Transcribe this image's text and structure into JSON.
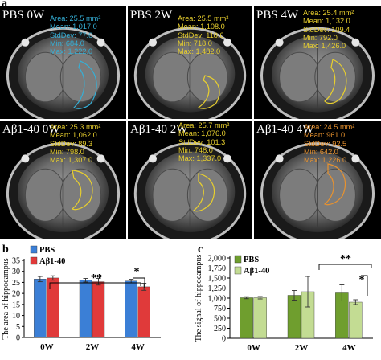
{
  "panel_letters": {
    "a": "a",
    "b": "b",
    "c": "c"
  },
  "images": [
    {
      "title": "PBS 0W",
      "stats_color": "#34b0d8",
      "roi_color": "#34b0d8",
      "stats": [
        "Area: 25.5 mm²",
        "Mean: 1,017.0",
        "StdDev: 77.6",
        "Min: 684.0",
        "Max: 1,222.0"
      ]
    },
    {
      "title": "PBS 2W",
      "stats_color": "#e8cf2e",
      "roi_color": "#e8cf2e",
      "stats": [
        "Area: 25.5 mm²",
        "Mean: 1,108.0",
        "StdDev: 118.6",
        "Min: 718.0",
        "Max: 1,482.0"
      ]
    },
    {
      "title": "PBS 4W",
      "stats_color": "#e8cf2e",
      "roi_color": "#e8cf2e",
      "stats": [
        "Area: 25.4 mm²",
        "Mean: 1,132.0",
        "StdDev: 109.4",
        "Min: 792.0",
        "Max: 1,426.0"
      ]
    },
    {
      "title": "Aβ1-40 0W",
      "stats_color": "#e8cf2e",
      "roi_color": "#e8cf2e",
      "stats": [
        "Area: 25.3 mm²",
        "Mean: 1,062.0",
        "StdDev: 89.3",
        "Min: 798.0",
        "Max: 1,307.0"
      ]
    },
    {
      "title": "Aβ1-40 2W",
      "stats_color": "#e8cf2e",
      "roi_color": "#e8cf2e",
      "stats": [
        "Area: 25.7 mm²",
        "Mean: 1,076.0",
        "StdDev: 101.3",
        "Min: 748.0",
        "Max: 1,337.0"
      ]
    },
    {
      "title": "Aβ1-40 4W",
      "stats_color": "#e8922e",
      "roi_color": "#e8922e",
      "stats": [
        "Area: 24.5 mm²",
        "Mean: 961.0",
        "StdDev: 92.5",
        "Min: 642.0",
        "Max: 1,226.0"
      ]
    }
  ],
  "chart_data": [
    {
      "type": "bar",
      "panel": "b",
      "ylabel": "The area of hippocampus",
      "categories": [
        "0W",
        "2W",
        "4W"
      ],
      "ylim": [
        0,
        35
      ],
      "yticks": [
        "0",
        "5",
        "10",
        "15",
        "20",
        "25",
        "30",
        "35"
      ],
      "series": [
        {
          "name": "PBS",
          "color": "#3b7fd6",
          "values": [
            26.5,
            26.0,
            25.6
          ],
          "errors": [
            1.2,
            0.8,
            0.8
          ]
        },
        {
          "name": "Aβ1-40",
          "color": "#e03a3a",
          "values": [
            27.0,
            25.3,
            23.0
          ],
          "errors": [
            1.0,
            1.5,
            1.6
          ]
        }
      ],
      "annotations": [
        {
          "text": "**",
          "between": [
            "0W",
            "4W"
          ],
          "series": "Aβ1-40"
        },
        {
          "text": "*",
          "between": [
            "4W",
            "4W"
          ]
        }
      ]
    },
    {
      "type": "bar",
      "panel": "c",
      "ylabel": "The signal of hippocampus",
      "categories": [
        "0W",
        "2W",
        "4W"
      ],
      "ylim": [
        0,
        2000
      ],
      "yticks": [
        "0",
        "250",
        "500",
        "750",
        "1,000",
        "1,250",
        "1,500",
        "1,750",
        "2,000"
      ],
      "series": [
        {
          "name": "PBS",
          "color": "#6f9e2e",
          "values": [
            1010,
            1070,
            1130
          ],
          "errors": [
            25,
            120,
            200
          ]
        },
        {
          "name": "Aβ1-40",
          "color": "#c3dc93",
          "values": [
            1010,
            1160,
            900
          ],
          "errors": [
            30,
            380,
            60
          ]
        }
      ],
      "annotations": [
        {
          "text": "**",
          "between": [
            "2W",
            "4W"
          ]
        },
        {
          "text": "*",
          "between": [
            "4W",
            "4W"
          ]
        }
      ]
    }
  ]
}
